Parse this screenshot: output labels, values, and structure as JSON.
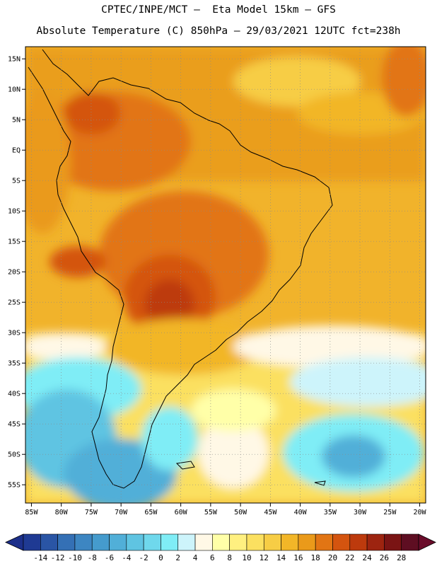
{
  "header": {
    "line1": "CPTEC/INPE/MCT –  Eta Model 15km – GFS",
    "line2": "Absolute Temperature (C) 850hPa – 29/03/2021 12UTC fct=238h"
  },
  "map": {
    "lon_range": [
      -86,
      -19
    ],
    "lat_range": [
      -58,
      17
    ],
    "lon_ticks": [
      {
        "value": -85,
        "label": "85W"
      },
      {
        "value": -80,
        "label": "80W"
      },
      {
        "value": -75,
        "label": "75W"
      },
      {
        "value": -70,
        "label": "70W"
      },
      {
        "value": -65,
        "label": "65W"
      },
      {
        "value": -60,
        "label": "60W"
      },
      {
        "value": -55,
        "label": "55W"
      },
      {
        "value": -50,
        "label": "50W"
      },
      {
        "value": -45,
        "label": "45W"
      },
      {
        "value": -40,
        "label": "40W"
      },
      {
        "value": -35,
        "label": "35W"
      },
      {
        "value": -30,
        "label": "30W"
      },
      {
        "value": -25,
        "label": "25W"
      },
      {
        "value": -20,
        "label": "20W"
      }
    ],
    "lat_ticks": [
      {
        "value": 15,
        "label": "15N"
      },
      {
        "value": 10,
        "label": "10N"
      },
      {
        "value": 5,
        "label": "5N"
      },
      {
        "value": 0,
        "label": "EQ"
      },
      {
        "value": -5,
        "label": "5S"
      },
      {
        "value": -10,
        "label": "10S"
      },
      {
        "value": -15,
        "label": "15S"
      },
      {
        "value": -20,
        "label": "20S"
      },
      {
        "value": -25,
        "label": "25S"
      },
      {
        "value": -30,
        "label": "30S"
      },
      {
        "value": -35,
        "label": "35S"
      },
      {
        "value": -40,
        "label": "40S"
      },
      {
        "value": -45,
        "label": "45S"
      },
      {
        "value": -50,
        "label": "50S"
      },
      {
        "value": -55,
        "label": "55S"
      }
    ],
    "grid": "dotted"
  },
  "colorbar": {
    "labels": [
      "-14",
      "-12",
      "-10",
      "-8",
      "-6",
      "-4",
      "-2",
      "0",
      "2",
      "4",
      "6",
      "8",
      "10",
      "12",
      "14",
      "16",
      "18",
      "20",
      "22",
      "24",
      "26",
      "28"
    ],
    "low_color": "#1c2f8a",
    "high_color": "#6a0c2a",
    "colors": [
      "#1f3a93",
      "#2a55a5",
      "#3470b5",
      "#3d86c2",
      "#459bcd",
      "#51afd8",
      "#5fc4e2",
      "#6fd8ec",
      "#7fedf6",
      "#cdf4fb",
      "#fff8e6",
      "#ffffa8",
      "#fff080",
      "#fbe060",
      "#f7cd45",
      "#f2b628",
      "#ea9a1a",
      "#e27514",
      "#d4540f",
      "#bd3a0d",
      "#9d2410",
      "#7a1414",
      "#5e0e22"
    ]
  }
}
